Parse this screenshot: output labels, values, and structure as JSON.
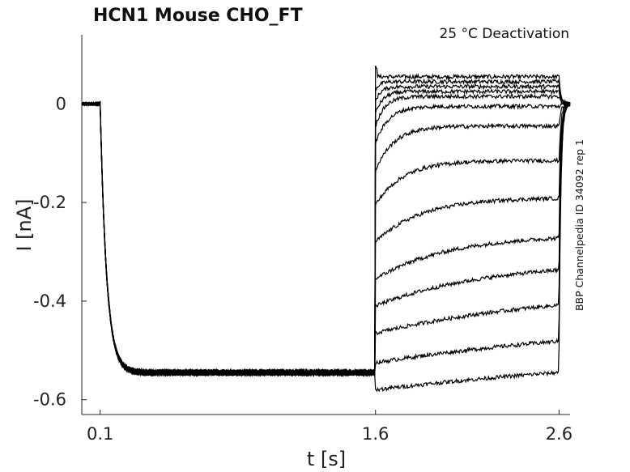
{
  "chart_data": {
    "type": "line",
    "title": "HCN1  Mouse  CHO_FT",
    "annotation": "25 °C  Deactivation",
    "side_label": "BBP Channelpedia ID 34092 rep 1",
    "xlabel": "t [s]",
    "ylabel": "I [nA]",
    "xlim": [
      0.0,
      2.66
    ],
    "ylim": [
      -0.63,
      0.14
    ],
    "x_ticks": [
      {
        "value": 0.1,
        "label": "0.1"
      },
      {
        "value": 1.6,
        "label": "1.6"
      },
      {
        "value": 2.6,
        "label": "2.6"
      }
    ],
    "y_ticks": [
      {
        "value": 0,
        "label": "0"
      },
      {
        "value": -0.2,
        "label": "-0.2"
      },
      {
        "value": -0.4,
        "label": "-0.4"
      },
      {
        "value": -0.6,
        "label": "-0.6"
      }
    ],
    "grid": false,
    "protocol": {
      "baseline": 0.0,
      "activation_start": 0.1,
      "activation_tau": 0.035,
      "activation_steady": -0.545,
      "deactivation_start": 1.6,
      "deactivation_end": 2.6
    },
    "series": [
      {
        "steady": 0.055,
        "tau": 0.02
      },
      {
        "steady": 0.045,
        "tau": 0.025
      },
      {
        "steady": 0.035,
        "tau": 0.03
      },
      {
        "steady": 0.025,
        "tau": 0.04
      },
      {
        "steady": 0.015,
        "tau": 0.05
      },
      {
        "steady": -0.005,
        "tau": 0.07
      },
      {
        "steady": -0.045,
        "tau": 0.1
      },
      {
        "steady": -0.115,
        "tau": 0.15
      },
      {
        "steady": -0.19,
        "tau": 0.25
      },
      {
        "steady": -0.265,
        "tau": 0.4
      },
      {
        "steady": -0.32,
        "tau": 0.6
      },
      {
        "steady": -0.375,
        "tau": 1.0
      },
      {
        "steady": -0.435,
        "tau": 1.5
      },
      {
        "steady": -0.49,
        "tau": 2.0
      }
    ]
  }
}
